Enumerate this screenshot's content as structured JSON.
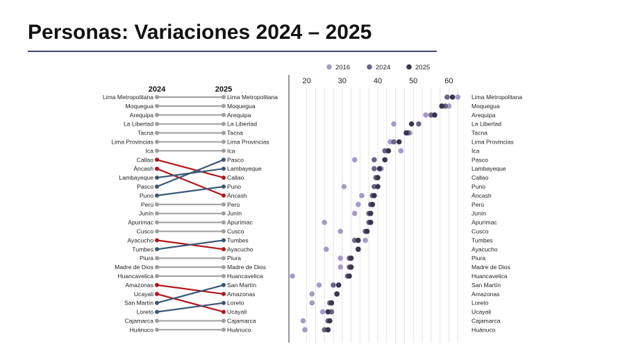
{
  "slide": {
    "title": "Personas: Variaciones 2024 – 2025"
  },
  "chart_data": [
    {
      "type": "slope",
      "columns": [
        "2024",
        "2025"
      ],
      "left_order": [
        "Lima Metropolitana",
        "Moquegua",
        "Arequipa",
        "La Libertad",
        "Tacna",
        "Lima Provincias",
        "Ica",
        "Callao",
        "Áncash",
        "Lambayeque",
        "Pasco",
        "Puno",
        "Perú",
        "Junín",
        "Apurímac",
        "Cusco",
        "Ayacucho",
        "Tumbes",
        "Piura",
        "Madre de Dios",
        "Huancavelica",
        "Amazonas",
        "Ucayali",
        "San Martín",
        "Loreto",
        "Cajamarca",
        "Huánuco"
      ],
      "right_order": [
        "Lima Metropolitana",
        "Moquegua",
        "Arequipa",
        "La Libertad",
        "Tacna",
        "Lima Provincias",
        "Ica",
        "Pasco",
        "Lambayeque",
        "Callao",
        "Puno",
        "Áncash",
        "Perú",
        "Junín",
        "Apurímac",
        "Cusco",
        "Tumbes",
        "Ayacucho",
        "Piura",
        "Madre de Dios",
        "Huancavelica",
        "San Martín",
        "Amazonas",
        "Loreto",
        "Ucayali",
        "Cajamarca",
        "Huánuco"
      ],
      "colors": {
        "neutral": "#9e9e9e",
        "down": "#b0161c",
        "up": "#3b5878"
      }
    },
    {
      "type": "dot",
      "legend": [
        "2016",
        "2024",
        "2025"
      ],
      "legend_position": "top",
      "colors": {
        "2016": "#a899c9",
        "2024": "#6b6485",
        "2025": "#3a3550"
      },
      "xticks": [
        20,
        30,
        40,
        50,
        60
      ],
      "xlim": [
        15,
        65
      ],
      "grid": true,
      "categories": [
        "Lima Metropolitana",
        "Moquegua",
        "Arequipa",
        "La Libertad",
        "Tacna",
        "Lima Provincias",
        "Ica",
        "Pasco",
        "Lambayeque",
        "Callao",
        "Puno",
        "Áncash",
        "Perú",
        "Junín",
        "Apurímac",
        "Cusco",
        "Tumbes",
        "Ayacucho",
        "Piura",
        "Madre de Dios",
        "Huancavelica",
        "San Martín",
        "Amazonas",
        "Loreto",
        "Ucayali",
        "Cajamarca",
        "Huánuco"
      ],
      "series": [
        {
          "name": "2016",
          "values": [
            62.5,
            60.0,
            53.5,
            44.5,
            49.0,
            43.5,
            46.5,
            33.5,
            41.0,
            39.5,
            30.5,
            35.5,
            34.5,
            33.5,
            25.0,
            29.5,
            36.5,
            25.5,
            29.5,
            29.5,
            16.0,
            23.5,
            21.5,
            21.5,
            24.5,
            19.0,
            19.5
          ]
        },
        {
          "name": "2024",
          "values": [
            59.5,
            59.0,
            55.0,
            51.5,
            48.5,
            44.5,
            42.0,
            39.0,
            39.0,
            39.5,
            39.0,
            38.5,
            38.0,
            37.5,
            37.5,
            36.5,
            33.5,
            34.5,
            32.0,
            32.0,
            31.5,
            27.5,
            28.5,
            26.5,
            27.0,
            26.0,
            25.0
          ]
        },
        {
          "name": "2025",
          "values": [
            61.0,
            58.0,
            56.0,
            49.5,
            48.0,
            46.0,
            43.0,
            42.0,
            40.5,
            40.0,
            40.0,
            39.0,
            38.5,
            38.0,
            38.0,
            37.0,
            34.5,
            34.5,
            32.5,
            32.5,
            32.0,
            29.0,
            28.5,
            27.0,
            26.0,
            26.5,
            26.0
          ]
        }
      ]
    }
  ]
}
